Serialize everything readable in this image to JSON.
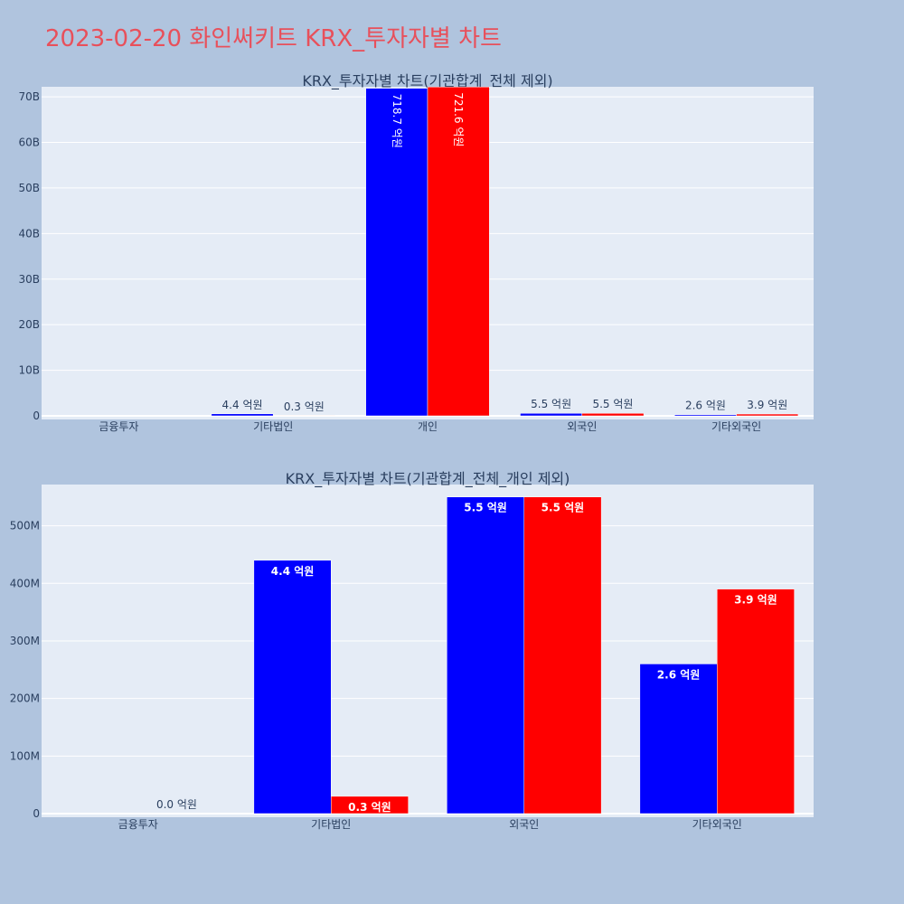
{
  "title": "2023-02-20 화인써키트 KRX_투자자별 차트",
  "colors": {
    "buy": "#0000ff",
    "sell": "#ff0000",
    "plot_bg": "#e5ecf6",
    "page_bg": "#b0c4de",
    "title": "#e8505b"
  },
  "chart_data": [
    {
      "type": "bar",
      "title": "KRX_투자자별 차트(기관합계_전체 제외)",
      "categories": [
        "금융투자",
        "기타법인",
        "개인",
        "외국인",
        "기타외국인"
      ],
      "ylim": [
        0,
        72000000000
      ],
      "yticks": [
        0,
        10000000000,
        20000000000,
        30000000000,
        40000000000,
        50000000000,
        60000000000,
        70000000000
      ],
      "yticklabels": [
        "0",
        "10B",
        "20B",
        "30B",
        "40B",
        "50B",
        "60B",
        "70B"
      ],
      "series": [
        {
          "values": [
            0,
            440000000,
            71870000000,
            550000000,
            260000000
          ],
          "labels": [
            "",
            "4.4 억원",
            "718.7 억원",
            "5.5 억원",
            "2.6 억원"
          ]
        },
        {
          "values": [
            0,
            30000000,
            72160000000,
            550000000,
            390000000
          ],
          "labels": [
            "",
            "0.3 억원",
            "721.6 억원",
            "5.5 억원",
            "3.9 억원"
          ]
        }
      ]
    },
    {
      "type": "bar",
      "title": "KRX_투자자별 차트(기관합계_전체_개인 제외)",
      "categories": [
        "금융투자",
        "기타법인",
        "외국인",
        "기타외국인"
      ],
      "ylim": [
        0,
        570000000
      ],
      "yticks": [
        0,
        100000000,
        200000000,
        300000000,
        400000000,
        500000000
      ],
      "yticklabels": [
        "0",
        "100M",
        "200M",
        "300M",
        "400M",
        "500M"
      ],
      "series": [
        {
          "values": [
            0,
            440000000,
            550000000,
            260000000
          ],
          "labels": [
            "",
            "4.4 억원",
            "5.5 억원",
            "2.6 억원"
          ]
        },
        {
          "values": [
            0,
            30000000,
            550000000,
            390000000
          ],
          "labels": [
            "0.0 억원",
            "0.3 억원",
            "5.5 억원",
            "3.9 억원"
          ]
        }
      ]
    }
  ]
}
